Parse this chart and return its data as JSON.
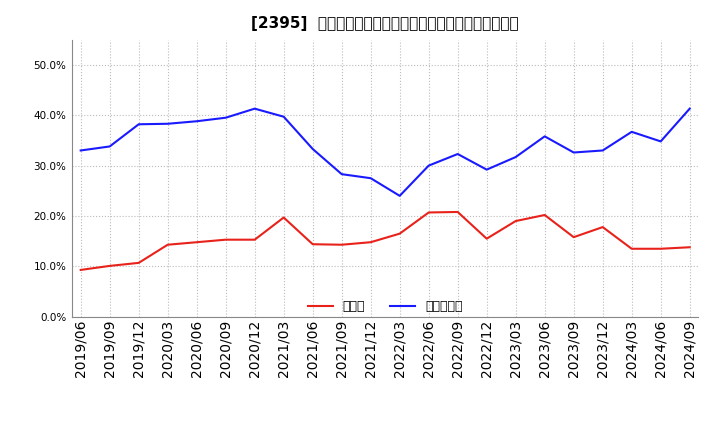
{
  "title": "[2395]  現預金、有利子負債の総資産に対する比率の推移",
  "x_labels": [
    "2019/06",
    "2019/09",
    "2019/12",
    "2020/03",
    "2020/06",
    "2020/09",
    "2020/12",
    "2021/03",
    "2021/06",
    "2021/09",
    "2021/12",
    "2022/03",
    "2022/06",
    "2022/09",
    "2022/12",
    "2023/03",
    "2023/06",
    "2023/09",
    "2023/12",
    "2024/03",
    "2024/06",
    "2024/09"
  ],
  "cash": [
    0.093,
    0.101,
    0.107,
    0.143,
    0.148,
    0.153,
    0.153,
    0.197,
    0.144,
    0.143,
    0.148,
    0.165,
    0.207,
    0.208,
    0.155,
    0.19,
    0.202,
    0.158,
    0.178,
    0.135,
    0.135,
    0.138
  ],
  "debt": [
    0.33,
    0.338,
    0.382,
    0.383,
    0.388,
    0.395,
    0.413,
    0.397,
    0.333,
    0.283,
    0.275,
    0.24,
    0.3,
    0.323,
    0.292,
    0.317,
    0.358,
    0.326,
    0.33,
    0.367,
    0.348,
    0.413
  ],
  "cash_color": "#e8221a",
  "debt_color": "#1a1aff",
  "legend_cash": "現預金",
  "legend_debt": "有利子負債",
  "ylim": [
    0.0,
    0.55
  ],
  "yticks": [
    0.0,
    0.1,
    0.2,
    0.3,
    0.4,
    0.5
  ],
  "bg_color": "#ffffff",
  "plot_bg_color": "#ffffff",
  "grid_color": "#bbbbbb",
  "title_fontsize": 11,
  "tick_fontsize": 7.5,
  "legend_fontsize": 9
}
